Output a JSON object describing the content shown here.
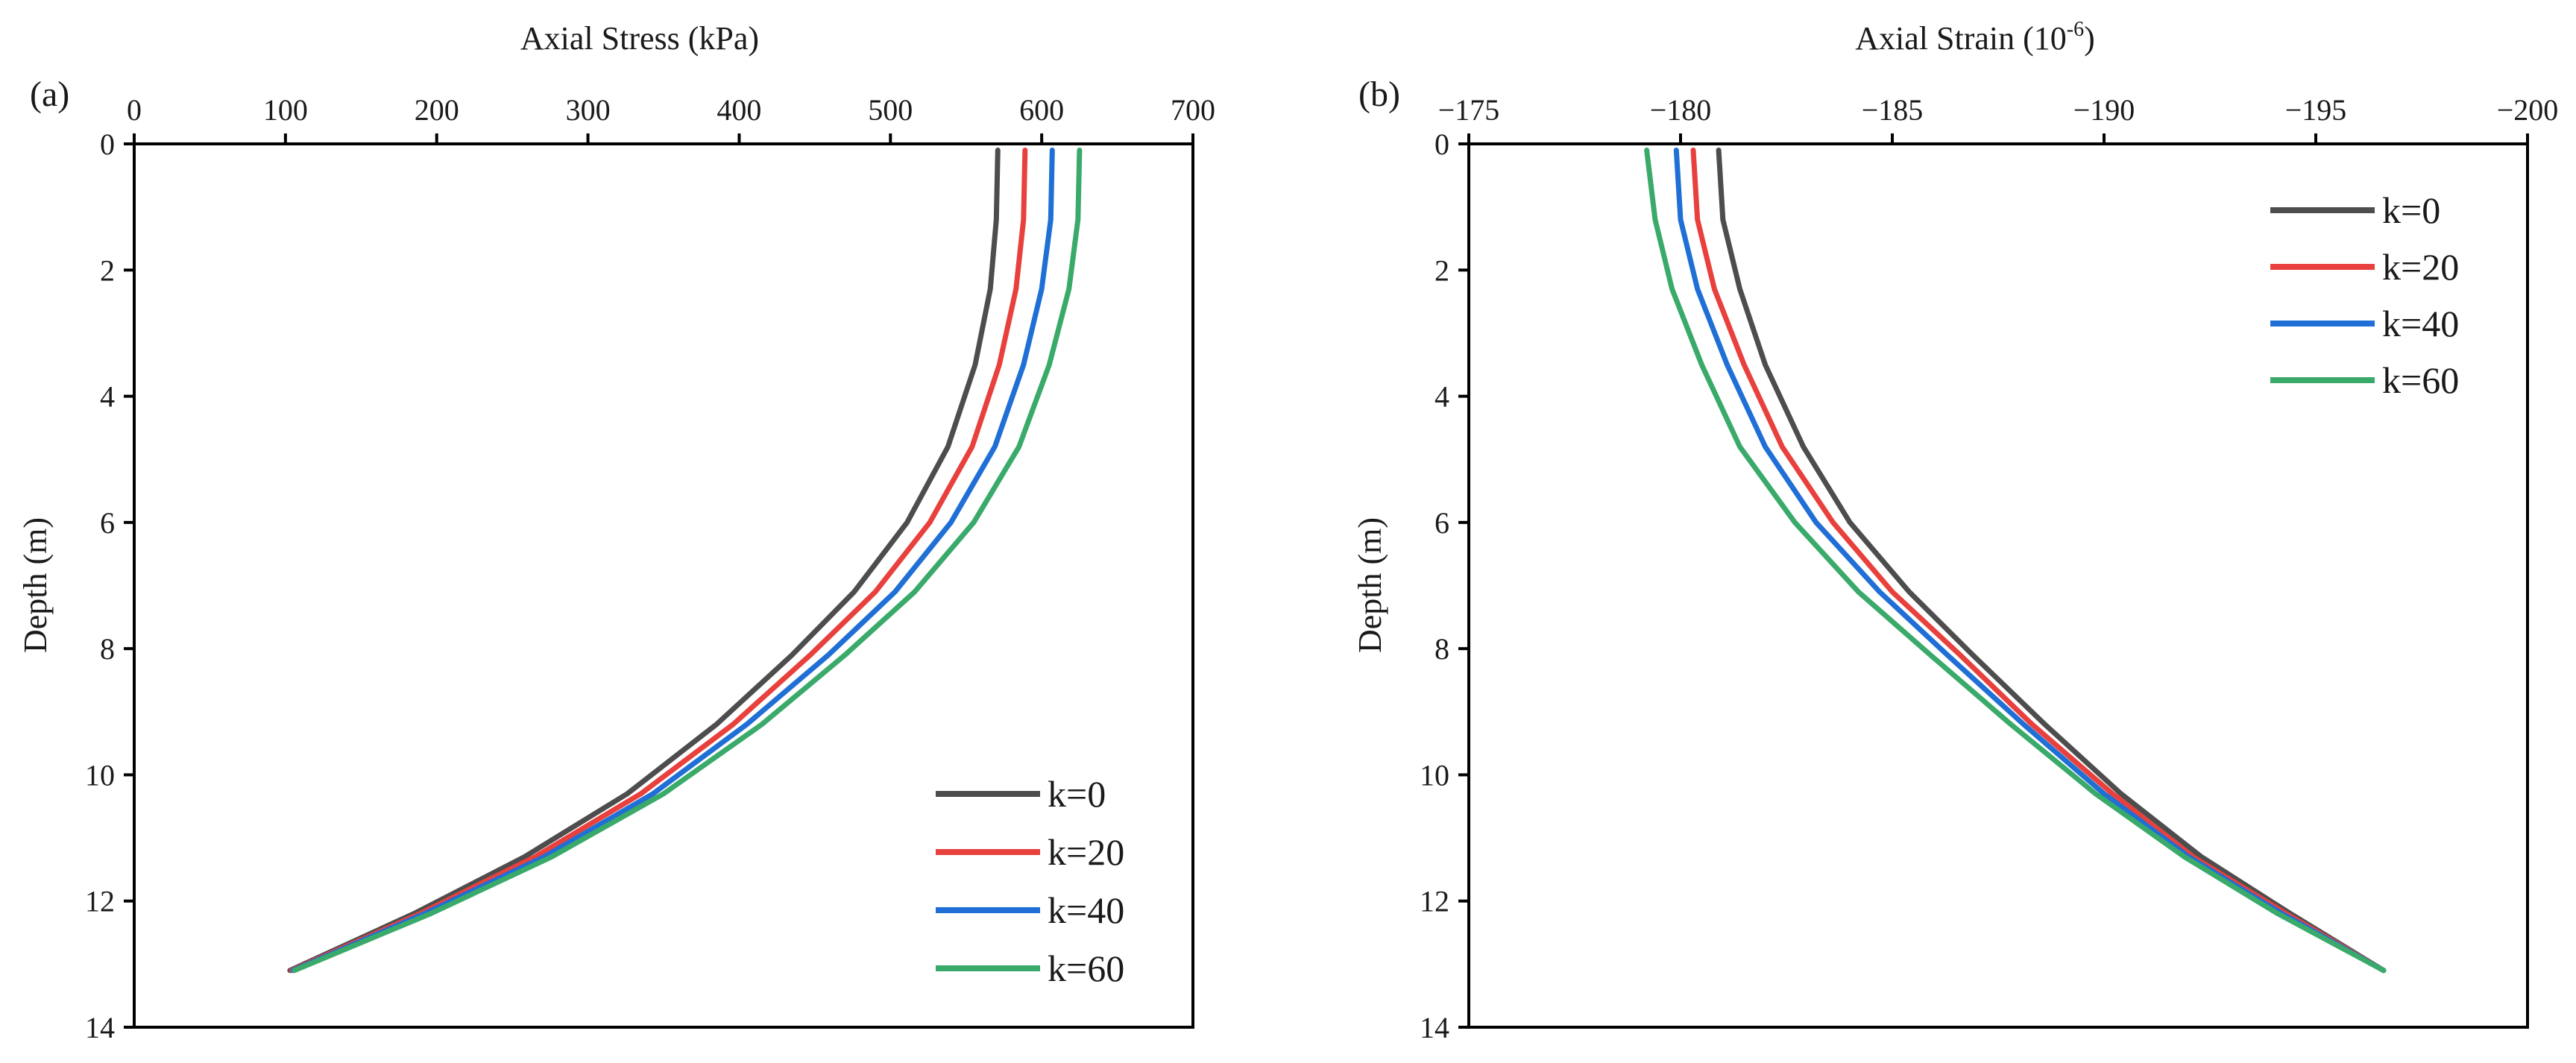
{
  "chart_data": [
    {
      "type": "line",
      "panel_label": "(a)",
      "title": "",
      "xlabel": "Axial Stress (kPa)",
      "ylabel": "Depth (m)",
      "x_axis_position": "top",
      "y_axis_inverted": true,
      "xlim": [
        0,
        700
      ],
      "ylim": [
        0,
        14
      ],
      "xticks": [
        0,
        100,
        200,
        300,
        400,
        500,
        600,
        700
      ],
      "yticks": [
        0,
        2,
        4,
        6,
        8,
        10,
        12,
        14
      ],
      "xtick_labels": [
        "0",
        "100",
        "200",
        "300",
        "400",
        "500",
        "600",
        "700"
      ],
      "ytick_labels": [
        "0",
        "2",
        "4",
        "6",
        "8",
        "10",
        "12",
        "14"
      ],
      "legend_position": "bottom-right",
      "series": [
        {
          "name": "k=0",
          "color": "#4d4d4d",
          "points": [
            [
              571,
              0.1
            ],
            [
              570,
              1.2
            ],
            [
              566,
              2.3
            ],
            [
              556,
              3.5
            ],
            [
              538,
              4.8
            ],
            [
              511,
              6.0
            ],
            [
              476,
              7.1
            ],
            [
              435,
              8.1
            ],
            [
              385,
              9.2
            ],
            [
              326,
              10.3
            ],
            [
              258,
              11.3
            ],
            [
              185,
              12.2
            ],
            [
              103,
              13.1
            ]
          ]
        },
        {
          "name": "k=20",
          "color": "#e8403d",
          "points": [
            [
              589,
              0.1
            ],
            [
              588,
              1.2
            ],
            [
              583,
              2.3
            ],
            [
              572,
              3.5
            ],
            [
              554,
              4.8
            ],
            [
              526,
              6.0
            ],
            [
              490,
              7.1
            ],
            [
              447,
              8.1
            ],
            [
              396,
              9.2
            ],
            [
              335,
              10.3
            ],
            [
              265,
              11.3
            ],
            [
              189,
              12.2
            ],
            [
              104,
              13.1
            ]
          ]
        },
        {
          "name": "k=40",
          "color": "#1f6fd6",
          "points": [
            [
              607,
              0.1
            ],
            [
              606,
              1.2
            ],
            [
              600,
              2.3
            ],
            [
              588,
              3.5
            ],
            [
              569,
              4.8
            ],
            [
              540,
              6.0
            ],
            [
              503,
              7.1
            ],
            [
              459,
              8.1
            ],
            [
              405,
              9.2
            ],
            [
              343,
              10.3
            ],
            [
              271,
              11.3
            ],
            [
              192,
              12.2
            ],
            [
              105,
              13.1
            ]
          ]
        },
        {
          "name": "k=60",
          "color": "#3aaa6a",
          "points": [
            [
              625,
              0.1
            ],
            [
              624,
              1.2
            ],
            [
              618,
              2.3
            ],
            [
              605,
              3.5
            ],
            [
              585,
              4.8
            ],
            [
              555,
              6.0
            ],
            [
              516,
              7.1
            ],
            [
              470,
              8.1
            ],
            [
              415,
              9.2
            ],
            [
              350,
              10.3
            ],
            [
              276,
              11.3
            ],
            [
              196,
              12.2
            ],
            [
              106,
              13.1
            ]
          ]
        }
      ]
    },
    {
      "type": "line",
      "panel_label": "(b)",
      "title": "",
      "xlabel": "Axial Strain (10",
      "xlabel_superscript": "-6",
      "xlabel_suffix": ")",
      "ylabel": "Depth (m)",
      "x_axis_position": "top",
      "y_axis_inverted": true,
      "xlim": [
        -175,
        -200
      ],
      "ylim": [
        0,
        14
      ],
      "xticks": [
        -175,
        -180,
        -185,
        -190,
        -195,
        -200
      ],
      "yticks": [
        0,
        2,
        4,
        6,
        8,
        10,
        12,
        14
      ],
      "xtick_labels": [
        "−175",
        "−180",
        "−185",
        "−190",
        "−195",
        "−200"
      ],
      "ytick_labels": [
        "0",
        "2",
        "4",
        "6",
        "8",
        "10",
        "12",
        "14"
      ],
      "legend_position": "top-right",
      "series": [
        {
          "name": "k=0",
          "color": "#4d4d4d",
          "points": [
            [
              -180.9,
              0.1
            ],
            [
              -181.0,
              1.2
            ],
            [
              -181.4,
              2.3
            ],
            [
              -182.0,
              3.5
            ],
            [
              -182.9,
              4.8
            ],
            [
              -184.0,
              6.0
            ],
            [
              -185.4,
              7.1
            ],
            [
              -186.9,
              8.1
            ],
            [
              -188.6,
              9.2
            ],
            [
              -190.4,
              10.3
            ],
            [
              -192.3,
              11.3
            ],
            [
              -194.4,
              12.2
            ],
            [
              -196.6,
              13.1
            ]
          ]
        },
        {
          "name": "k=20",
          "color": "#e8403d",
          "points": [
            [
              -180.3,
              0.1
            ],
            [
              -180.4,
              1.2
            ],
            [
              -180.8,
              2.3
            ],
            [
              -181.5,
              3.5
            ],
            [
              -182.4,
              4.8
            ],
            [
              -183.6,
              6.0
            ],
            [
              -185.0,
              7.1
            ],
            [
              -186.6,
              8.1
            ],
            [
              -188.3,
              9.2
            ],
            [
              -190.2,
              10.3
            ],
            [
              -192.1,
              11.3
            ],
            [
              -194.3,
              12.2
            ],
            [
              -196.6,
              13.1
            ]
          ]
        },
        {
          "name": "k=40",
          "color": "#1f6fd6",
          "points": [
            [
              -179.9,
              0.1
            ],
            [
              -180.0,
              1.2
            ],
            [
              -180.4,
              2.3
            ],
            [
              -181.1,
              3.5
            ],
            [
              -182.0,
              4.8
            ],
            [
              -183.2,
              6.0
            ],
            [
              -184.7,
              7.1
            ],
            [
              -186.3,
              8.1
            ],
            [
              -188.1,
              9.2
            ],
            [
              -190.0,
              10.3
            ],
            [
              -192.0,
              11.3
            ],
            [
              -194.2,
              12.2
            ],
            [
              -196.6,
              13.1
            ]
          ]
        },
        {
          "name": "k=60",
          "color": "#3aaa6a",
          "points": [
            [
              -179.2,
              0.1
            ],
            [
              -179.4,
              1.2
            ],
            [
              -179.8,
              2.3
            ],
            [
              -180.5,
              3.5
            ],
            [
              -181.4,
              4.8
            ],
            [
              -182.7,
              6.0
            ],
            [
              -184.2,
              7.1
            ],
            [
              -185.9,
              8.1
            ],
            [
              -187.8,
              9.2
            ],
            [
              -189.8,
              10.3
            ],
            [
              -191.9,
              11.3
            ],
            [
              -194.1,
              12.2
            ],
            [
              -196.6,
              13.1
            ]
          ]
        }
      ]
    }
  ]
}
